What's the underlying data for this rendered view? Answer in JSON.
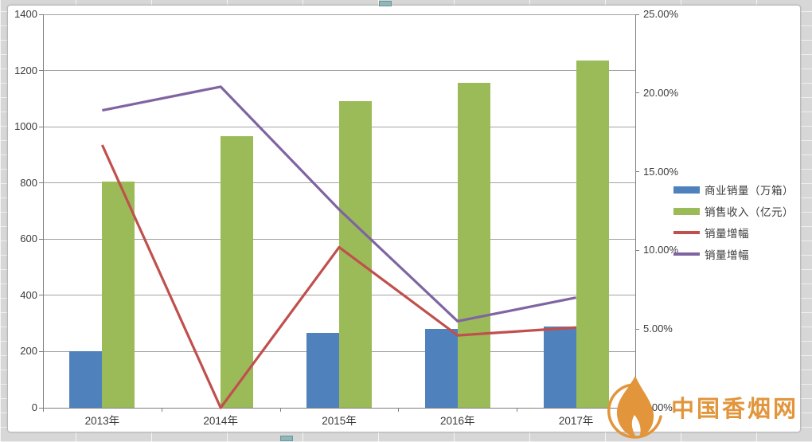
{
  "page": {
    "background": "#d7d7d7",
    "chart_background": "#ffffff",
    "grid_color": "#a3a3a3",
    "axis_color": "#808080",
    "text_color": "#3a3a3a"
  },
  "watermark": {
    "text": "中国香烟网",
    "color": "#E2953B"
  },
  "chart_data": {
    "type": "bar",
    "subtype": "combo-bar-line",
    "categories": [
      "2013年",
      "2014年",
      "2015年",
      "2016年",
      "2017年"
    ],
    "series": [
      {
        "name": "商业销量（万箱）",
        "type": "bar",
        "axis": "left",
        "color": "#4F81BD",
        "values": [
          200,
          null,
          265,
          280,
          290
        ]
      },
      {
        "name": "销售收入（亿元）",
        "type": "bar",
        "axis": "left",
        "color": "#9BBB59",
        "values": [
          805,
          965,
          1090,
          1155,
          1235
        ]
      },
      {
        "name": "销量增幅",
        "type": "line",
        "axis": "right",
        "color": "#C0504D",
        "values": [
          16.7,
          0.0,
          10.2,
          4.6,
          5.1
        ]
      },
      {
        "name": "销量增幅",
        "type": "line",
        "axis": "right",
        "color": "#8064A2",
        "values": [
          18.9,
          20.4,
          12.6,
          5.5,
          7.0
        ]
      }
    ],
    "left_axis": {
      "min": 0,
      "max": 1400,
      "step": 200,
      "tick_labels": [
        "0",
        "200",
        "400",
        "600",
        "800",
        "1000",
        "1200",
        "1400"
      ]
    },
    "right_axis": {
      "min": 0,
      "max": 25,
      "step": 5,
      "tick_labels": [
        "0.00%",
        "5.00%",
        "10.00%",
        "15.00%",
        "20.00%",
        "25.00%"
      ]
    },
    "grid": true,
    "legend_position": "right"
  }
}
